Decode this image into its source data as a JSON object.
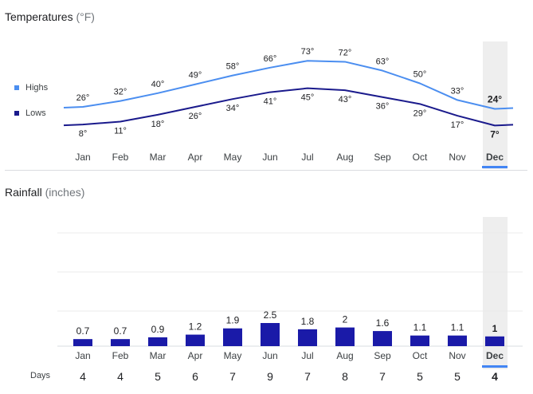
{
  "temperature": {
    "title": "Temperatures",
    "unit": "(°F)",
    "legend": {
      "highs_label": "Highs",
      "lows_label": "Lows"
    }
  },
  "rainfall": {
    "title": "Rainfall",
    "unit": "(inches)",
    "days_label": "Days"
  },
  "selected_month": "Dec",
  "colors": {
    "highs": "#4b8ef0",
    "lows": "#1a1a8c",
    "bars": "#1a1aa8",
    "selection": "#4285f4"
  },
  "chart_data": [
    {
      "type": "line",
      "title": "Temperatures (°F)",
      "categories": [
        "Jan",
        "Feb",
        "Mar",
        "Apr",
        "May",
        "Jun",
        "Jul",
        "Aug",
        "Sep",
        "Oct",
        "Nov",
        "Dec"
      ],
      "series": [
        {
          "name": "Highs",
          "values": [
            26,
            32,
            40,
            49,
            58,
            66,
            73,
            72,
            63,
            50,
            33,
            24
          ]
        },
        {
          "name": "Lows",
          "values": [
            8,
            11,
            18,
            26,
            34,
            41,
            45,
            43,
            36,
            29,
            17,
            7
          ]
        }
      ],
      "value_suffix": "°",
      "selected": "Dec"
    },
    {
      "type": "bar",
      "title": "Rainfall (inches)",
      "categories": [
        "Jan",
        "Feb",
        "Mar",
        "Apr",
        "May",
        "Jun",
        "Jul",
        "Aug",
        "Sep",
        "Oct",
        "Nov",
        "Dec"
      ],
      "values": [
        0.7,
        0.7,
        0.9,
        1.2,
        1.9,
        2.5,
        1.8,
        2,
        1.6,
        1.1,
        1.1,
        1
      ],
      "value_labels": [
        "0.7",
        "0.7",
        "0.9",
        "1.2",
        "1.9",
        "2.5",
        "1.8",
        "2",
        "1.6",
        "1.1",
        "1.1",
        "1"
      ],
      "days": [
        4,
        4,
        5,
        6,
        7,
        9,
        7,
        8,
        7,
        5,
        5,
        4
      ],
      "selected": "Dec"
    }
  ]
}
